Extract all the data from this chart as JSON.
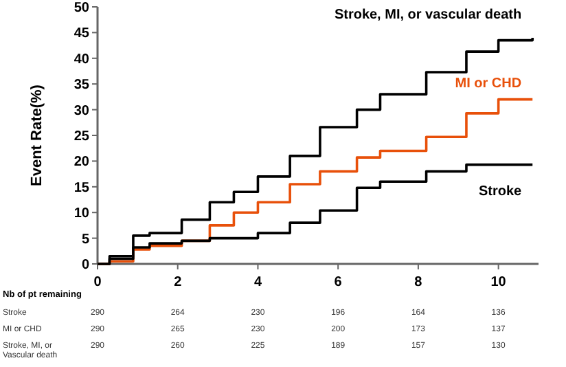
{
  "chart_data": {
    "type": "step",
    "ylabel": "Event Rate(%)",
    "xlim": [
      0,
      11
    ],
    "xticks": [
      0,
      2,
      4,
      6,
      8,
      10
    ],
    "ylim": [
      0,
      50
    ],
    "yticks": [
      0,
      5,
      10,
      15,
      20,
      25,
      30,
      35,
      40,
      45,
      50
    ],
    "grid": false,
    "x": [
      0,
      0.3,
      0.89,
      1.3,
      2.1,
      2.8,
      3.4,
      4.0,
      4.8,
      5.55,
      6.47,
      7.05,
      8.2,
      9.2,
      10,
      10.85
    ],
    "series": [
      {
        "name": "Stroke, MI, or vascular death",
        "color": "#000000",
        "values": [
          0,
          1.5,
          5.5,
          6,
          8.6,
          12,
          14,
          17,
          21,
          26.6,
          30,
          33,
          37.3,
          41.3,
          43.5,
          44
        ]
      },
      {
        "name": "MI or CHD",
        "color": "#e8500a",
        "values": [
          0,
          0.5,
          2.8,
          3.5,
          4.5,
          7.5,
          10,
          12,
          15.5,
          18,
          20.7,
          22,
          24.7,
          29.3,
          32,
          32
        ]
      },
      {
        "name": "Stroke",
        "color": "#000000",
        "values": [
          0,
          1,
          3.2,
          4,
          4.5,
          5,
          5,
          6,
          8,
          10.4,
          14.8,
          16,
          18,
          19.3,
          19.3,
          19.3
        ]
      }
    ],
    "annotations": [
      "Nb of pt remaining",
      "Stroke",
      "290",
      "264",
      "230",
      "196",
      "164",
      "136",
      "MI or CHD",
      "290",
      "265",
      "230",
      "200",
      "173",
      "137",
      "Stroke, MI, or Vascular death",
      "290",
      "260",
      "225",
      "189",
      "157",
      "130"
    ]
  }
}
